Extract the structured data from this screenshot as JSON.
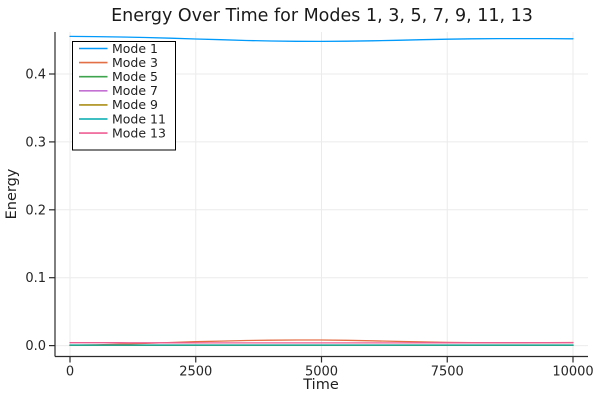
{
  "chart_data": {
    "type": "line",
    "title": "Energy Over Time for Modes 1, 3, 5, 7, 9, 11, 13",
    "xlabel": "Time",
    "ylabel": "Energy",
    "xlim": [
      0,
      10000
    ],
    "ylim": [
      0,
      0.46
    ],
    "xticks": [
      0,
      2500,
      5000,
      7500,
      10000
    ],
    "yticks": [
      0.0,
      0.1,
      0.2,
      0.3,
      0.4
    ],
    "grid": true,
    "legend_position": "top-left",
    "grid_color": "#ebebeb",
    "axis_color": "#2b2b2b",
    "background_color": "#ffffff",
    "x": [
      0,
      500,
      1000,
      1500,
      2000,
      2500,
      3000,
      3500,
      4000,
      4500,
      5000,
      5500,
      6000,
      6500,
      7000,
      7500,
      8000,
      8500,
      9000,
      9500,
      10000
    ],
    "series": [
      {
        "name": "Mode 1",
        "color": "#009AFA",
        "values": [
          0.4554,
          0.4551,
          0.4545,
          0.4537,
          0.4527,
          0.4516,
          0.4505,
          0.4494,
          0.4486,
          0.4481,
          0.448,
          0.4483,
          0.4489,
          0.4497,
          0.4505,
          0.4513,
          0.4518,
          0.4521,
          0.4522,
          0.4521,
          0.4519
        ]
      },
      {
        "name": "Mode 3",
        "color": "#E36F47",
        "values": [
          0.0004,
          0.0011,
          0.0021,
          0.0033,
          0.0045,
          0.0057,
          0.0067,
          0.0075,
          0.008,
          0.0083,
          0.0082,
          0.0078,
          0.0071,
          0.0062,
          0.0054,
          0.0047,
          0.0043,
          0.0041,
          0.0041,
          0.0043,
          0.0045
        ]
      },
      {
        "name": "Mode 5",
        "color": "#3EA44E",
        "values": [
          0.0009,
          0.0009,
          0.0009,
          0.0009,
          0.0009,
          0.0009,
          0.0009,
          0.0009,
          0.0009,
          0.0009,
          0.0009,
          0.0009,
          0.0009,
          0.0009,
          0.0009,
          0.0009,
          0.0009,
          0.0009,
          0.0009,
          0.0009,
          0.0009
        ]
      },
      {
        "name": "Mode 7",
        "color": "#C371D2",
        "values": [
          0.0006,
          0.0006,
          0.0006,
          0.0006,
          0.0006,
          0.0006,
          0.0006,
          0.0006,
          0.0006,
          0.0006,
          0.0006,
          0.0006,
          0.0006,
          0.0006,
          0.0006,
          0.0006,
          0.0006,
          0.0006,
          0.0006,
          0.0006,
          0.0006
        ]
      },
      {
        "name": "Mode 9",
        "color": "#AC8E18",
        "values": [
          0.0004,
          0.0004,
          0.0004,
          0.0004,
          0.0004,
          0.0004,
          0.0004,
          0.0004,
          0.0004,
          0.0004,
          0.0004,
          0.0004,
          0.0004,
          0.0004,
          0.0004,
          0.0004,
          0.0004,
          0.0004,
          0.0004,
          0.0004,
          0.0004
        ]
      },
      {
        "name": "Mode 11",
        "color": "#00AAAE",
        "values": [
          0.0007,
          0.0007,
          0.0007,
          0.0007,
          0.0007,
          0.0007,
          0.0007,
          0.0007,
          0.0007,
          0.0007,
          0.0007,
          0.0007,
          0.0007,
          0.0007,
          0.0007,
          0.0007,
          0.0007,
          0.0007,
          0.0007,
          0.0007,
          0.0007
        ]
      },
      {
        "name": "Mode 13",
        "color": "#ED5E93",
        "values": [
          0.0043,
          0.0042,
          0.0042,
          0.0041,
          0.0041,
          0.004,
          0.004,
          0.004,
          0.004,
          0.004,
          0.004,
          0.004,
          0.004,
          0.004,
          0.0041,
          0.0041,
          0.0041,
          0.0042,
          0.0042,
          0.0042,
          0.0042
        ]
      }
    ]
  }
}
